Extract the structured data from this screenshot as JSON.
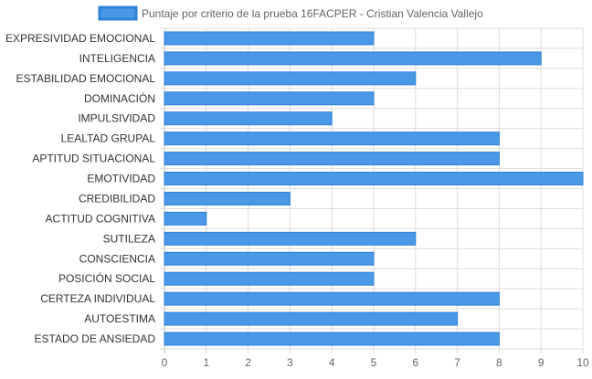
{
  "chart_data": {
    "type": "bar",
    "orientation": "horizontal",
    "legend": {
      "position": "top",
      "label": "Puntaje por criterio de la prueba 16FACPER - Cristian Valencia Vallejo"
    },
    "categories": [
      "EXPRESIVIDAD EMOCIONAL",
      "INTELIGENCIA",
      "ESTABILIDAD EMOCIONAL",
      "DOMINACIÓN",
      "IMPULSIVIDAD",
      "LEALTAD GRUPAL",
      "APTITUD SITUACIONAL",
      "EMOTIVIDAD",
      "CREDIBILIDAD",
      "ACTITUD COGNITIVA",
      "SUTILEZA",
      "CONSCIENCIA",
      "POSICIÓN SOCIAL",
      "CERTEZA INDIVIDUAL",
      "AUTOESTIMA",
      "ESTADO DE ANSIEDAD"
    ],
    "series": [
      {
        "name": "Puntaje por criterio de la prueba 16FACPER - Cristian Valencia Vallejo",
        "values": [
          5,
          9,
          6,
          5,
          4,
          8,
          8,
          10,
          3,
          1,
          6,
          5,
          5,
          8,
          7,
          8
        ]
      }
    ],
    "xlim": [
      0,
      10
    ],
    "x_ticks": [
      "0",
      "1",
      "2",
      "3",
      "4",
      "5",
      "6",
      "7",
      "8",
      "9",
      "10"
    ],
    "grid": true,
    "colors": {
      "bar_fill": "#4a98e6",
      "bar_stroke": "#2f82d6",
      "grid": "#dddddd",
      "tick_label": "#666666",
      "category_label": "#333333"
    }
  }
}
